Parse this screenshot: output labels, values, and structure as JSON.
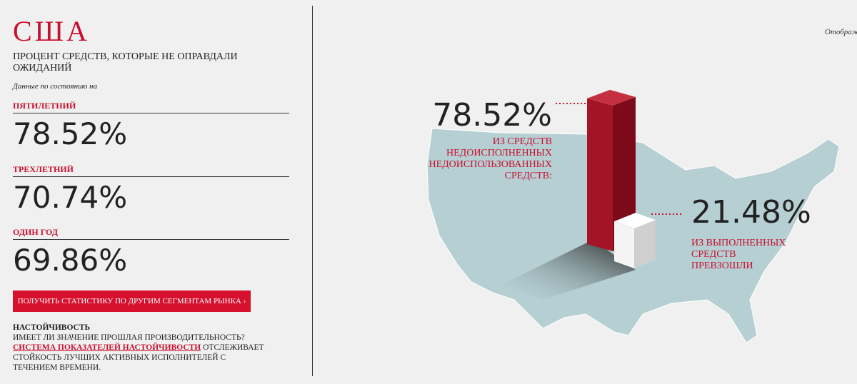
{
  "left": {
    "title": "США",
    "subtitle": "ПРОЦЕНТ СРЕДСТВ, КОТОРЫЕ НЕ ОПРАВДАЛИ ОЖИДАНИЙ",
    "date_note": "Данные по состоянию на",
    "stats": [
      {
        "label": "ПЯТИЛЕТНИЙ",
        "value": "78.52%"
      },
      {
        "label": "ТРЕХЛЕТНИЙ",
        "value": "70.74%"
      },
      {
        "label": "ОДИН ГОД",
        "value": "69.86%"
      }
    ],
    "button": "ПОЛУЧИТЬ СТАТИСТИКУ ПО ДРУГИМ СЕГМЕНТАМ РЫНКА ›",
    "persistence": {
      "heading": "НАСТОЙЧИВОСТЬ",
      "question": "ИМЕЕТ ЛИ ЗНАЧЕНИЕ ПРОШЛАЯ ПРОИЗВОДИТЕЛЬНОСТЬ?",
      "link": "СИСТЕМА ПОКАЗАТЕЛЕЙ НАСТОЙЧИВОСТИ",
      "text": " ОТСЛЕЖИВАЕТ СТОЙКОСТЬ ЛУЧШИХ АКТИВНЫХ ИСПОЛНИТЕЛЕЙ С ТЕЧЕНИЕМ ВРЕМЕНИ."
    }
  },
  "graphic": {
    "note": "Отображ",
    "values": [
      78.52,
      21.48
    ],
    "value_labels": [
      "78.52%",
      "21.48%"
    ],
    "captions": [
      [
        "ИЗ СРЕДСТВ",
        "НЕДОИСПОЛНЕННЫХ",
        "НЕДОИСПОЛЬЗОВАННЫХ",
        "СРЕДСТВ:"
      ],
      [
        "ИЗ ВЫПОЛНЕННЫХ",
        "СРЕДСТВ",
        "ПРЕВЗОШЛИ"
      ]
    ]
  }
}
